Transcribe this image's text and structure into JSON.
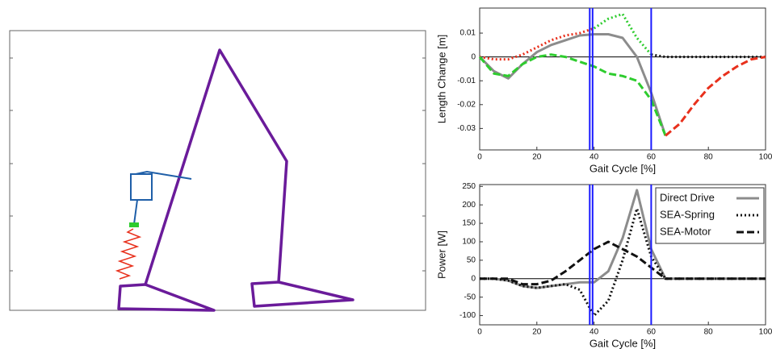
{
  "chart_data": [
    {
      "type": "line",
      "ylabel": "Length Change [m]",
      "xlabel": "Gait Cycle [%]",
      "x": [
        0,
        5,
        10,
        15,
        20,
        25,
        30,
        35,
        40,
        45,
        50,
        55,
        60,
        65,
        70,
        75,
        80,
        85,
        90,
        95,
        100
      ],
      "xlim": [
        0,
        100
      ],
      "xticks": [
        0,
        20,
        40,
        60,
        80,
        100
      ],
      "ylim": [
        -0.039,
        0.0205
      ],
      "yticks": [
        -0.03,
        -0.02,
        -0.01,
        0,
        0.01
      ],
      "zero_line": true,
      "vlines": [
        38.5,
        39.5,
        60
      ],
      "vline_color": "#1a1aff",
      "series": [
        {
          "color": "#8c8c8c",
          "style": "solid",
          "values": [
            0,
            -0.006,
            -0.009,
            -0.003,
            0.002,
            0.005,
            0.007,
            0.009,
            0.0095,
            0.0095,
            0.008,
            0.0,
            -0.015,
            -0.033,
            null,
            null,
            null,
            null,
            null,
            null,
            null
          ]
        },
        {
          "color": "#e8301c",
          "style": "dotted",
          "values": [
            0,
            -0.001,
            -0.001,
            0.001,
            0.004,
            0.007,
            0.009,
            0.01,
            0.012,
            null,
            null,
            null,
            null,
            null,
            null,
            null,
            null,
            null,
            null,
            null,
            null
          ]
        },
        {
          "color": "#2ecc2e",
          "style": "dotted",
          "values": [
            null,
            null,
            null,
            null,
            null,
            null,
            null,
            null,
            0.012,
            0.016,
            0.018,
            0.008,
            0.001,
            null,
            null,
            null,
            null,
            null,
            null,
            null,
            null
          ]
        },
        {
          "color": "#111111",
          "style": "dotted",
          "values": [
            null,
            null,
            null,
            null,
            null,
            null,
            null,
            null,
            null,
            null,
            null,
            null,
            0.001,
            0.0,
            0.0,
            0.0,
            0.0,
            0.0,
            0.0,
            0.0,
            0.0
          ]
        },
        {
          "color": "#2ecc2e",
          "style": "dashed",
          "values": [
            0,
            -0.007,
            -0.008,
            -0.003,
            0.0,
            0.001,
            0.0,
            -0.002,
            -0.004,
            -0.007,
            -0.008,
            -0.01,
            -0.018,
            -0.033,
            null,
            null,
            null,
            null,
            null,
            null,
            null
          ]
        },
        {
          "color": "#e8301c",
          "style": "dashed",
          "values": [
            null,
            null,
            null,
            null,
            null,
            null,
            null,
            null,
            null,
            null,
            null,
            null,
            null,
            -0.033,
            -0.028,
            -0.02,
            -0.013,
            -0.008,
            -0.004,
            -0.001,
            0
          ]
        }
      ]
    },
    {
      "type": "line",
      "ylabel": "Power [W]",
      "xlabel": "Gait Cycle [%]",
      "x": [
        0,
        5,
        10,
        15,
        20,
        25,
        30,
        35,
        40,
        45,
        50,
        55,
        60,
        65,
        70,
        75,
        80,
        85,
        90,
        95,
        100
      ],
      "xlim": [
        0,
        100
      ],
      "xticks": [
        0,
        20,
        40,
        60,
        80,
        100
      ],
      "ylim": [
        -125,
        255
      ],
      "yticks": [
        -100,
        -50,
        0,
        50,
        100,
        150,
        200,
        250
      ],
      "zero_line": true,
      "vlines": [
        38.5,
        39.5,
        60
      ],
      "vline_color": "#1a1aff",
      "legend": "upper right",
      "series": [
        {
          "name": "Direct Drive",
          "color": "#8c8c8c",
          "style": "solid",
          "values": [
            0,
            0,
            -5,
            -20,
            -25,
            -20,
            -15,
            -10,
            -10,
            20,
            110,
            240,
            80,
            0,
            0,
            0,
            0,
            0,
            0,
            0,
            0
          ]
        },
        {
          "name": "SEA-Spring",
          "color": "#111111",
          "style": "dotted",
          "values": [
            0,
            0,
            -5,
            -20,
            -25,
            -20,
            -15,
            -30,
            -100,
            -60,
            50,
            190,
            60,
            0,
            0,
            0,
            0,
            0,
            0,
            0,
            0
          ]
        },
        {
          "name": "SEA-Motor",
          "color": "#111111",
          "style": "dashed",
          "values": [
            0,
            0,
            0,
            -15,
            -15,
            -5,
            20,
            50,
            80,
            100,
            80,
            60,
            30,
            0,
            0,
            0,
            0,
            0,
            0,
            0,
            0
          ]
        }
      ]
    }
  ]
}
